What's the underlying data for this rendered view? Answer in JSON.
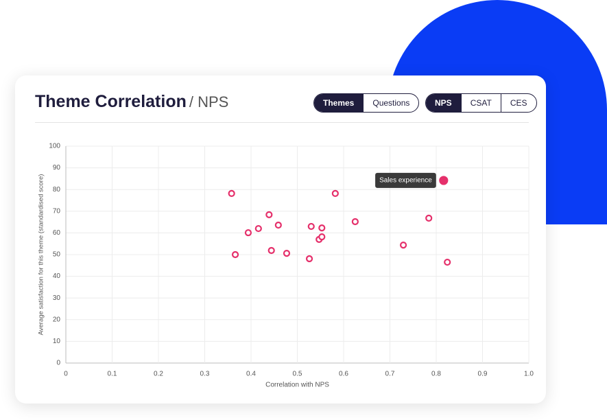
{
  "header": {
    "title": "Theme Correlation",
    "subtitle": "/ NPS"
  },
  "toggles": [
    {
      "options": [
        "Themes",
        "Questions"
      ],
      "active": 0
    },
    {
      "options": [
        "NPS",
        "CSAT",
        "CES"
      ],
      "active": 0
    }
  ],
  "chart_data": {
    "type": "scatter",
    "x_label": "Correlation with NPS",
    "y_label": "Average satisfaction for this theme (standardised score)",
    "color": "#e5306b",
    "x": [
      0.358,
      0.366,
      0.394,
      0.416,
      0.439,
      0.444,
      0.459,
      0.477,
      0.526,
      0.53,
      0.547,
      0.553,
      0.553,
      0.582,
      0.625,
      0.729,
      0.784,
      0.816,
      0.824
    ],
    "values": [
      78.2,
      50.0,
      60.1,
      62.0,
      68.4,
      51.9,
      63.6,
      50.6,
      48.1,
      63.0,
      57.0,
      58.2,
      62.3,
      78.2,
      65.2,
      54.4,
      66.8,
      84.2,
      46.5
    ],
    "annotations": [
      {
        "text": "Sales experience",
        "point": 17
      }
    ],
    "xlim": [
      0,
      1
    ],
    "ylim": [
      0,
      100
    ],
    "xticks": [
      0,
      0.1,
      0.2,
      0.3,
      0.4,
      0.5,
      0.6,
      0.7,
      0.8,
      0.9,
      {
        "value": 1,
        "label": "1.0"
      }
    ],
    "yticks": [
      0,
      10,
      20,
      30,
      40,
      50,
      60,
      70,
      80,
      90,
      100
    ],
    "grid": true
  }
}
